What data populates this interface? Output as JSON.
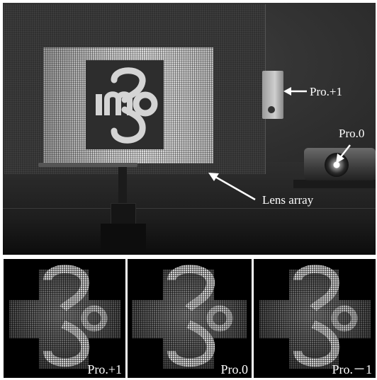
{
  "photo": {
    "callouts": {
      "pro_plus_1": "Pro.+1",
      "pro_0": "Pro.0",
      "lens_array": "Lens array"
    }
  },
  "panels": [
    {
      "label": "Pro.+1"
    },
    {
      "label": "Pro.0"
    },
    {
      "label": "Pro.－1"
    }
  ],
  "colors": {
    "background": "#ffffff",
    "callout_text": "#ffffff",
    "panel_background": "#000000"
  },
  "icons": {
    "arrow": "arrow-left-icon"
  }
}
